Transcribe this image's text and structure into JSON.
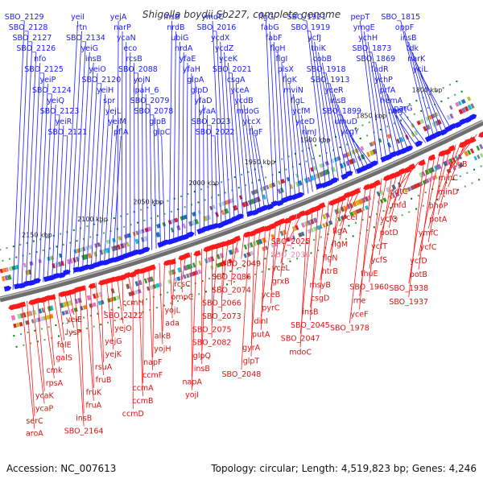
{
  "title": "Shigella boydii Sb227, complete genome",
  "accession": "Accession: NC_007613",
  "topology": "Topology: circular; Length: 4,519,823 bp; Genes: 4,246",
  "colors": {
    "forward": "#1a1aff",
    "reverse": "#ff1a1a",
    "highlight": "#f0a0c8",
    "backbone": "#6e6e6e"
  },
  "ticks": [
    "1800 kbp",
    "1850 kbp",
    "1900 kbp",
    "1950 kbp",
    "2000 kbp",
    "2050 kbp",
    "2100 kbp",
    "2150 kbp"
  ],
  "forward_labels": [
    "SBO_2129",
    "SBO_2128",
    "SBO_2127",
    "SBO_2126",
    "nfo",
    "SBO_2125",
    "yeiP",
    "SBO_2124",
    "yeiQ",
    "SBO_2123",
    "yeiR",
    "SBO_2121",
    "yeiI",
    "rtn",
    "SBO_2134",
    "yeiG",
    "insB",
    "yeiO",
    "SBO_2120",
    "yeiH",
    "spr",
    "yejL",
    "yeiM",
    "pflA",
    "yejA",
    "narP",
    "ycaN",
    "eco",
    "rcsB",
    "SBO_2088",
    "yojN",
    "ipaH_6",
    "SBO_2079",
    "SBO_2078",
    "glpB",
    "glpC",
    "insB",
    "nrdB",
    "ubiG",
    "nrdA",
    "yfaE",
    "yfaH",
    "glpA",
    "glpD",
    "yfaD",
    "yfaA",
    "SBO_2023",
    "SBO_2022",
    "ymdC",
    "SBO_2016",
    "ycdX",
    "ycdZ",
    "yceK",
    "SBO_2021",
    "csgA",
    "yceA",
    "ycdB",
    "mdoG",
    "yccX",
    "flgF",
    "flgG",
    "fabG",
    "fabF",
    "flgH",
    "flgI",
    "plsX",
    "flgK",
    "mviN",
    "flgL",
    "ycfM",
    "yceD",
    "rimJ",
    "SBO_1921",
    "SBO_1919",
    "ycfJ",
    "thiK",
    "cobB",
    "SBO_1918",
    "SBO_1913",
    "yceR",
    "insB",
    "SBO_1899",
    "umuD",
    "ycgY",
    "pepT",
    "ymgE",
    "ychH",
    "SBO_1873",
    "SBO_1869",
    "fadR",
    "ychP",
    "prfA",
    "hemA",
    "narJ",
    "narI",
    "narG",
    "SBO_1815",
    "oppF",
    "insB",
    "tdk",
    "narK",
    "yciL"
  ],
  "reverse_labels": [
    "ycgB",
    "minC",
    "minD",
    "phoP",
    "potA",
    "ymfC",
    "ycfC",
    "ycfD",
    "potB",
    "SBO_1938",
    "SBO_1937",
    "potC",
    "mfd",
    "ycfQ",
    "potD",
    "ycfT",
    "ycfS",
    "fhuE",
    "SBO_1960",
    "rne",
    "yceF",
    "SBO_1978",
    "yceI",
    "flgA",
    "flgM",
    "flgN",
    "htrB",
    "msyB",
    "csgD",
    "insB",
    "SBO_2045",
    "SBO_2047",
    "mdoC",
    "SBO_2025",
    "SBO_2036",
    "yceL",
    "grxB",
    "yceB",
    "pyrC",
    "dinI",
    "putA",
    "gyrA",
    "glpT",
    "SBO_2048",
    "SBO_2049",
    "SBO_2086",
    "SBO_2074",
    "SBO_2066",
    "SBO_2073",
    "SBO_2075",
    "SBO_2082",
    "glpQ",
    "insB",
    "napA",
    "yojI",
    "rcsC",
    "ompC",
    "yojL",
    "ada",
    "alkB",
    "yojH",
    "napF",
    "ccmF",
    "ccmA",
    "ccmB",
    "ccmD",
    "ccmH",
    "SBO_2122",
    "yejO",
    "yejG",
    "yejK",
    "rsuA",
    "fruB",
    "fruK",
    "fruA",
    "insB",
    "SBO_2164",
    "yeiE",
    "lysP",
    "folE",
    "galS",
    "cmk",
    "rpsA",
    "ycaK",
    "ycaP",
    "serC",
    "aroA"
  ]
}
